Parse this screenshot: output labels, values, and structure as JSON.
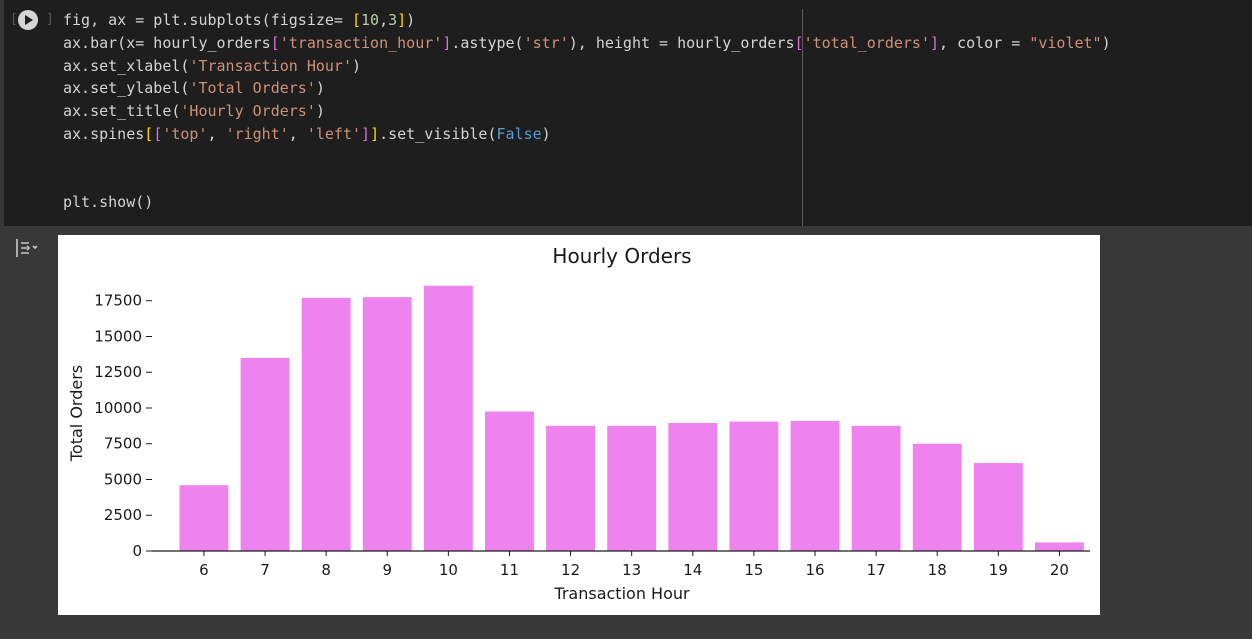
{
  "cell": {
    "execution_count_brackets": [
      "[",
      "]"
    ],
    "code_lines": [
      [
        [
          "t",
          "fig, ax = plt.subplots(figsize= "
        ],
        [
          "p1",
          "["
        ],
        [
          "n",
          "10"
        ],
        [
          "t",
          ","
        ],
        [
          "n",
          "3"
        ],
        [
          "p1",
          "]"
        ],
        [
          "t",
          ")"
        ]
      ],
      [
        [
          "t",
          "ax.bar(x= hourly_orders"
        ],
        [
          "p2",
          "["
        ],
        [
          "s",
          "'transaction_hour'"
        ],
        [
          "p2",
          "]"
        ],
        [
          "t",
          ".astype("
        ],
        [
          "s",
          "'str'"
        ],
        [
          "t",
          "), height = hourly_orders"
        ],
        [
          "p2",
          "["
        ],
        [
          "s",
          "'total_orders'"
        ],
        [
          "p2",
          "]"
        ],
        [
          "t",
          ", color = "
        ],
        [
          "s",
          "\"violet\""
        ],
        [
          "t",
          ")"
        ]
      ],
      [
        [
          "t",
          "ax.set_xlabel("
        ],
        [
          "s",
          "'Transaction Hour'"
        ],
        [
          "t",
          ")"
        ]
      ],
      [
        [
          "t",
          "ax.set_ylabel("
        ],
        [
          "s",
          "'Total Orders'"
        ],
        [
          "t",
          ")"
        ]
      ],
      [
        [
          "t",
          "ax.set_title("
        ],
        [
          "s",
          "'Hourly Orders'"
        ],
        [
          "t",
          ")"
        ]
      ],
      [
        [
          "t",
          "ax.spines"
        ],
        [
          "p1",
          "["
        ],
        [
          "p2",
          "["
        ],
        [
          "s",
          "'top'"
        ],
        [
          "t",
          ", "
        ],
        [
          "s",
          "'right'"
        ],
        [
          "t",
          ", "
        ],
        [
          "s",
          "'left'"
        ],
        [
          "p2",
          "]"
        ],
        [
          "p1",
          "]"
        ],
        [
          "t",
          ".set_visible("
        ],
        [
          "k",
          "False"
        ],
        [
          "t",
          ")"
        ]
      ],
      [
        [
          "t",
          ""
        ]
      ],
      [
        [
          "t",
          ""
        ]
      ],
      [
        [
          "t",
          "plt.show()"
        ]
      ]
    ],
    "colors": {
      "text": "#d4d4d4",
      "string": "#ce9178",
      "number": "#b5cea8",
      "keyword": "#569cd6",
      "bracket_1": "#ffd700",
      "bracket_2": "#da70d6"
    }
  },
  "output": {
    "icon": "output-collapse-icon"
  },
  "chart_data": {
    "type": "bar",
    "title": "Hourly Orders",
    "xlabel": "Transaction Hour",
    "ylabel": "Total Orders",
    "categories": [
      "6",
      "7",
      "8",
      "9",
      "10",
      "11",
      "12",
      "13",
      "14",
      "15",
      "16",
      "17",
      "18",
      "19",
      "20"
    ],
    "values": [
      4600,
      13500,
      17700,
      17750,
      18550,
      9750,
      8750,
      8750,
      8950,
      9050,
      9100,
      8750,
      7500,
      6150,
      600
    ],
    "yticks": [
      0,
      2500,
      5000,
      7500,
      10000,
      12500,
      15000,
      17500
    ],
    "ylim": [
      0,
      19300
    ],
    "bar_color": "violet",
    "grid": false,
    "hidden_spines": [
      "top",
      "right",
      "left"
    ]
  }
}
